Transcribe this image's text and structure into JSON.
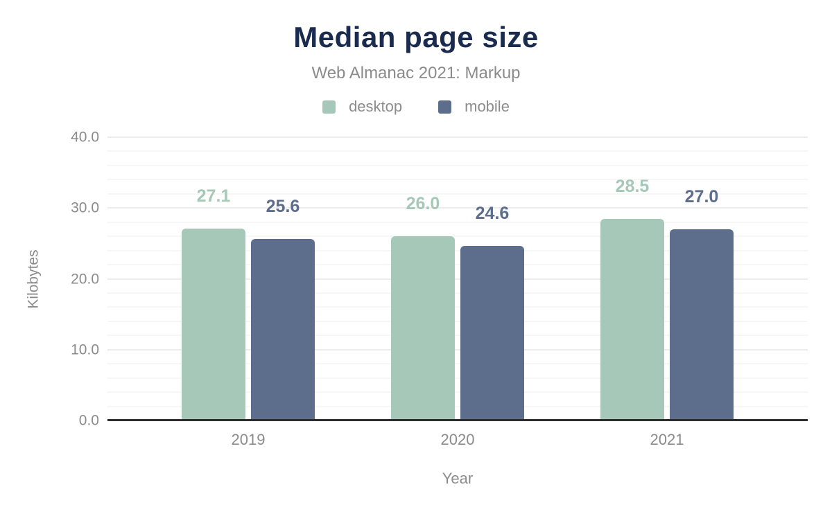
{
  "chart_data": {
    "type": "bar",
    "title": "Median page size",
    "subtitle": "Web Almanac 2021: Markup",
    "xlabel": "Year",
    "ylabel": "Kilobytes",
    "categories": [
      "2019",
      "2020",
      "2021"
    ],
    "series": [
      {
        "name": "desktop",
        "color": "#a5c8b8",
        "values": [
          27.1,
          26.0,
          28.5
        ],
        "value_labels": [
          "27.1",
          "26.0",
          "28.5"
        ]
      },
      {
        "name": "mobile",
        "color": "#5d6e8c",
        "values": [
          25.6,
          24.6,
          27.0
        ],
        "value_labels": [
          "25.6",
          "24.6",
          "27.0"
        ]
      }
    ],
    "ylim": [
      0,
      40
    ],
    "ytick_step": 10,
    "minor_grid_step": 2,
    "yticks": [
      "0.0",
      "10.0",
      "20.0",
      "30.0",
      "40.0"
    ],
    "grid": true,
    "legend_position": "top",
    "style": {
      "title_color": "#1a2b4d",
      "text_color": "#8b8b8b",
      "axis_line_color": "#2d2d2d",
      "grid_major_color": "#ececec",
      "grid_minor_color": "#f6f6f6",
      "background": "#ffffff"
    }
  }
}
